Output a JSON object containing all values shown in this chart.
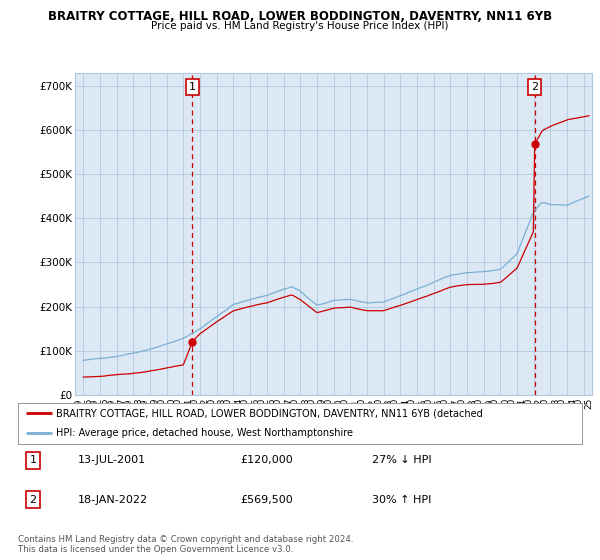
{
  "title1": "BRAITRY COTTAGE, HILL ROAD, LOWER BODDINGTON, DAVENTRY, NN11 6YB",
  "title2": "Price paid vs. HM Land Registry's House Price Index (HPI)",
  "ylim": [
    0,
    730000
  ],
  "yticks": [
    0,
    100000,
    200000,
    300000,
    400000,
    500000,
    600000,
    700000
  ],
  "ytick_labels": [
    "£0",
    "£100K",
    "£200K",
    "£300K",
    "£400K",
    "£500K",
    "£600K",
    "£700K"
  ],
  "xlim_start": 1995,
  "xlim_end": 2025.5,
  "sale1_date": 2001.53,
  "sale1_price": 120000,
  "sale1_label": "1",
  "sale2_date": 2022.05,
  "sale2_price": 569500,
  "sale2_label": "2",
  "hpi_color": "#7bafd4",
  "sale_color": "#cc0000",
  "chart_bg": "#dce9f5",
  "plot_bg": "#ffffff",
  "grid_color": "#b0c8e0",
  "legend_label1": "BRAITRY COTTAGE, HILL ROAD, LOWER BODDINGTON, DAVENTRY, NN11 6YB (detached",
  "legend_label2": "HPI: Average price, detached house, West Northamptonshire",
  "table_row1": [
    "1",
    "13-JUL-2001",
    "£120,000",
    "27% ↓ HPI"
  ],
  "table_row2": [
    "2",
    "18-JAN-2022",
    "£569,500",
    "30% ↑ HPI"
  ],
  "footnote": "Contains HM Land Registry data © Crown copyright and database right 2024.\nThis data is licensed under the Open Government Licence v3.0.",
  "background_color": "#ffffff"
}
